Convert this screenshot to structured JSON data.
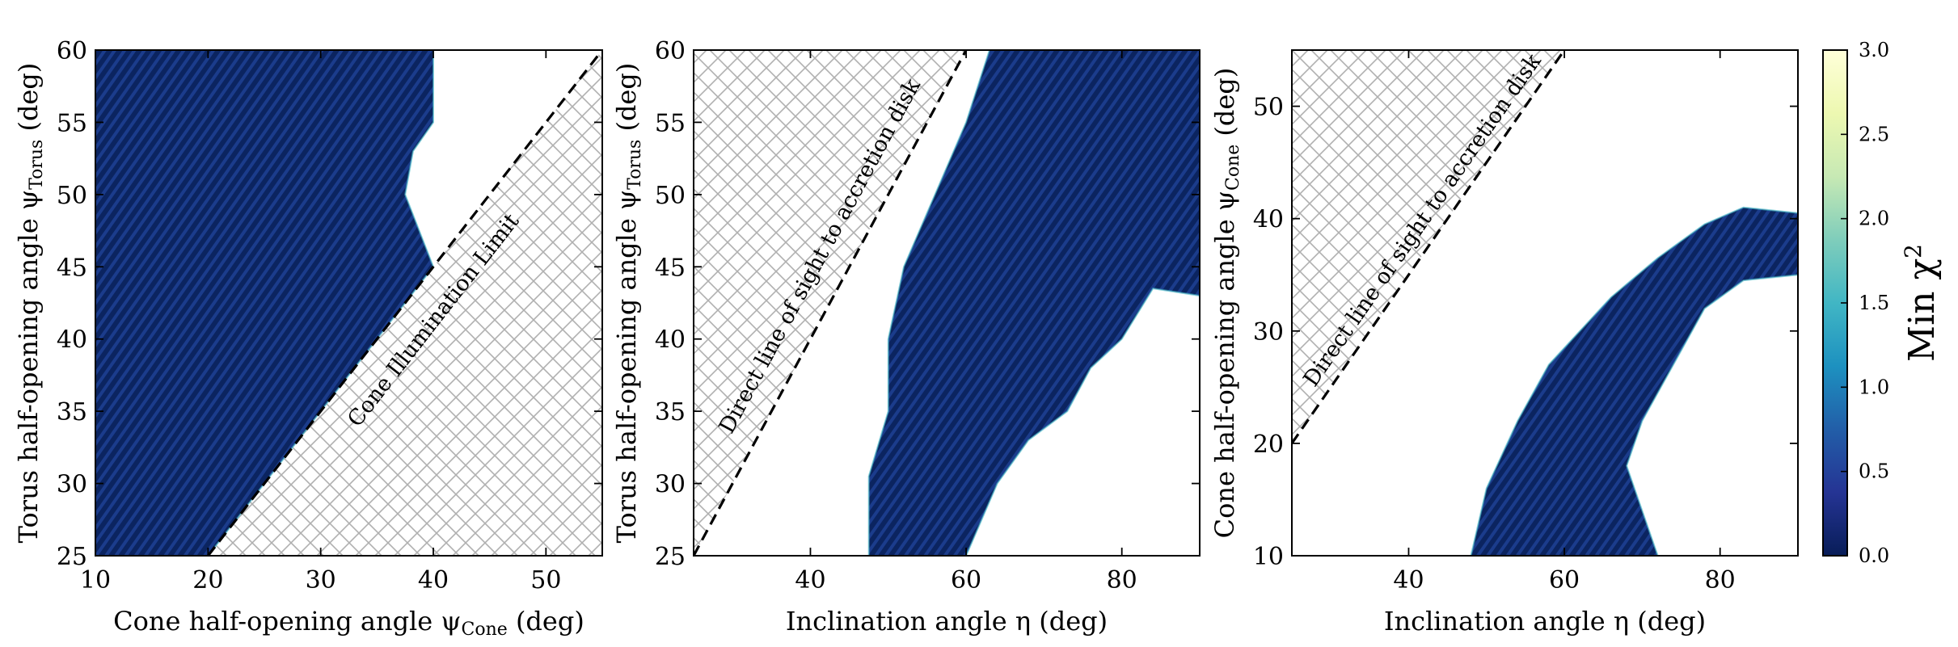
{
  "chart_data": [
    {
      "type": "heatmap",
      "xlabel": "Cone half-opening angle ψ_Cone (deg)",
      "xlabel_main": "Cone half-opening angle ψ",
      "xlabel_sub": "Cone",
      "xlabel_unit": " (deg)",
      "ylabel": "Torus half-opening angle ψ_Torus (deg)",
      "ylabel_main": "Torus half-opening angle ψ",
      "ylabel_sub": "Torus",
      "ylabel_unit": " (deg)",
      "xlim": [
        10,
        55
      ],
      "ylim": [
        25,
        60
      ],
      "xticks": [
        10,
        20,
        30,
        40,
        50
      ],
      "yticks": [
        25,
        30,
        35,
        40,
        45,
        50,
        55,
        60
      ],
      "forbidden_line": {
        "x": [
          20,
          55
        ],
        "y": [
          25,
          60
        ]
      },
      "annotation": "Cone Illumination Limit",
      "region_boundary": [
        [
          20,
          25
        ],
        [
          40,
          45
        ],
        [
          37.5,
          50
        ],
        [
          38.2,
          53
        ],
        [
          40,
          55
        ],
        [
          40,
          60
        ],
        [
          10,
          60
        ],
        [
          10,
          25
        ]
      ]
    },
    {
      "type": "heatmap",
      "xlabel": "Inclination angle η (deg)",
      "xlabel_main": "Inclination angle η",
      "xlabel_unit": " (deg)",
      "ylabel": "Torus half-opening angle ψ_Torus (deg)",
      "ylabel_main": "Torus half-opening angle ψ",
      "ylabel_sub": "Torus",
      "ylabel_unit": " (deg)",
      "xlim": [
        25,
        90
      ],
      "ylim": [
        25,
        60
      ],
      "xticks": [
        40,
        60,
        80
      ],
      "yticks": [
        25,
        30,
        35,
        40,
        45,
        50,
        55,
        60
      ],
      "forbidden_line": {
        "x": [
          25,
          60
        ],
        "y": [
          25,
          60
        ]
      },
      "annotation": "Direct line of sight to accretion disk",
      "region_boundary": [
        [
          47.5,
          25
        ],
        [
          47.5,
          30.5
        ],
        [
          50,
          35
        ],
        [
          50,
          40
        ],
        [
          52,
          45
        ],
        [
          56,
          50
        ],
        [
          60,
          55
        ],
        [
          63,
          60
        ],
        [
          90,
          60
        ],
        [
          90,
          43
        ],
        [
          84,
          43.5
        ],
        [
          80,
          40
        ],
        [
          76,
          38
        ],
        [
          73,
          35
        ],
        [
          68,
          33
        ],
        [
          64,
          30
        ],
        [
          60,
          25
        ]
      ]
    },
    {
      "type": "heatmap",
      "xlabel": "Inclination angle η (deg)",
      "xlabel_main": "Inclination angle η",
      "xlabel_unit": " (deg)",
      "ylabel": "Cone half-opening angle ψ_Cone (deg)",
      "ylabel_main": "Cone half-opening angle ψ",
      "ylabel_sub": "Cone",
      "ylabel_unit": " (deg)",
      "xlim": [
        25,
        90
      ],
      "ylim": [
        10,
        55
      ],
      "xticks": [
        40,
        60,
        80
      ],
      "yticks": [
        10,
        20,
        30,
        40,
        50
      ],
      "forbidden_line": {
        "x": [
          25,
          60
        ],
        "y": [
          20,
          55
        ]
      },
      "annotation": "Direct line of sight to accretion disk",
      "region_boundary": [
        [
          48,
          10
        ],
        [
          50,
          16
        ],
        [
          54,
          22
        ],
        [
          58,
          27
        ],
        [
          62,
          30
        ],
        [
          66,
          33
        ],
        [
          72,
          36.5
        ],
        [
          78,
          39.5
        ],
        [
          83,
          41
        ],
        [
          90,
          40.5
        ],
        [
          90,
          35
        ],
        [
          83,
          34.5
        ],
        [
          78,
          32
        ],
        [
          74,
          27
        ],
        [
          70,
          22
        ],
        [
          68,
          18
        ],
        [
          70,
          14
        ],
        [
          72,
          10
        ]
      ]
    }
  ],
  "colorbar": {
    "label_main": "Min χ",
    "label_sup": "2",
    "min": 0.0,
    "max": 3.0,
    "ticks": [
      "0.0",
      "0.5",
      "1.0",
      "1.5",
      "2.0",
      "2.5",
      "3.0"
    ],
    "colormap": "YlGnBu",
    "colors": [
      "#081d58",
      "#253494",
      "#225ea8",
      "#1d91c0",
      "#41b6c4",
      "#7fcdbb",
      "#c7e9b4",
      "#edf8b1",
      "#ffffd9"
    ]
  },
  "colors": {
    "heatmap_base": "#0b2460",
    "heatmap_stripe": "#1a3a8a",
    "hatch": "#b0b0b0"
  }
}
